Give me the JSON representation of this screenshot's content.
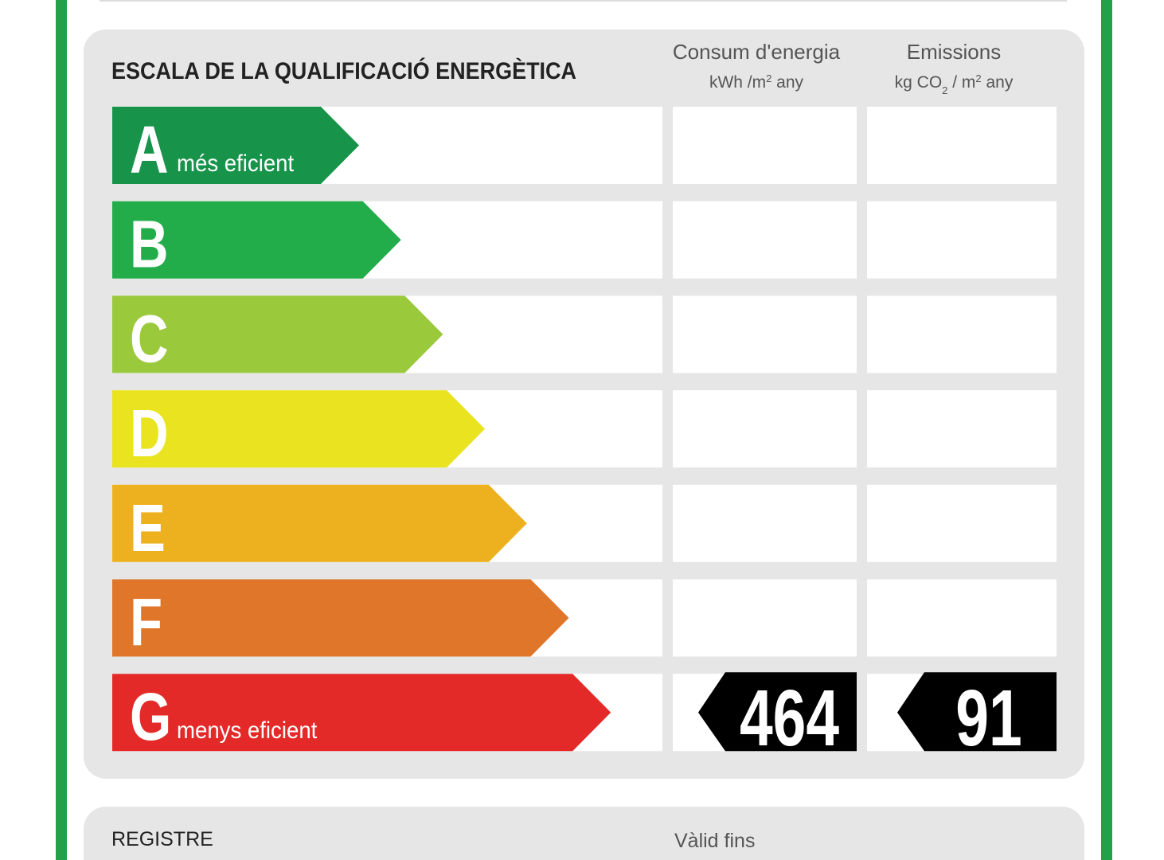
{
  "title": "ESCALA DE LA QUALIFICACIÓ ENERGÈTICA",
  "columns": [
    {
      "title": "Consum d'energia",
      "unit": [
        {
          "text": "kWh /m"
        },
        {
          "text": "2",
          "style": "sup"
        },
        {
          "text": "  any"
        }
      ]
    },
    {
      "title": "Emissions",
      "unit": [
        {
          "text": "kg CO"
        },
        {
          "text": "2",
          "style": "sub"
        },
        {
          "text": " / m"
        },
        {
          "text": "2",
          "style": "sup"
        },
        {
          "text": "  any"
        }
      ]
    }
  ],
  "rows": [
    {
      "letter": "A",
      "note": "més eficient",
      "color": "#17934a"
    },
    {
      "letter": "B",
      "color": "#22ad4a"
    },
    {
      "letter": "C",
      "color": "#9bc93c"
    },
    {
      "letter": "D",
      "color": "#e9e41f"
    },
    {
      "letter": "E",
      "color": "#edb11f"
    },
    {
      "letter": "F",
      "color": "#e07629"
    },
    {
      "letter": "G",
      "note": "menys eficient",
      "color": "#e32a28",
      "rating": [
        464,
        91
      ]
    }
  ],
  "footer": {
    "left": "REGISTRE",
    "right": "Vàlid fins"
  }
}
